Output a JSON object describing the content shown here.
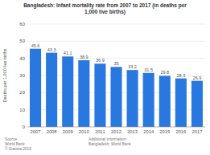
{
  "chart_data": {
    "type": "bar",
    "title": "Bangladesh: Infant mortality rate from 2007 to 2017 (in deaths per\n1,000 live births)",
    "categories": [
      "2007",
      "2008",
      "2009",
      "2010",
      "2011",
      "2012",
      "2013",
      "2014",
      "2015",
      "2016",
      "2017"
    ],
    "values": [
      45.6,
      43.3,
      41.1,
      38.9,
      36.9,
      35,
      33.2,
      31.5,
      29.8,
      28.3,
      26.9
    ],
    "color": "#2878e0",
    "y_label": "Deaths per 1,000 live births",
    "ylim": [
      0,
      60
    ],
    "yticks": [
      0,
      10,
      20,
      30,
      40,
      50,
      60
    ],
    "grid": true,
    "data_labels": true,
    "annotations": [
      "Source:\nWorld Bank\n© Statista 2019",
      "Additional Information:\nBangladesh; World Bank"
    ]
  }
}
